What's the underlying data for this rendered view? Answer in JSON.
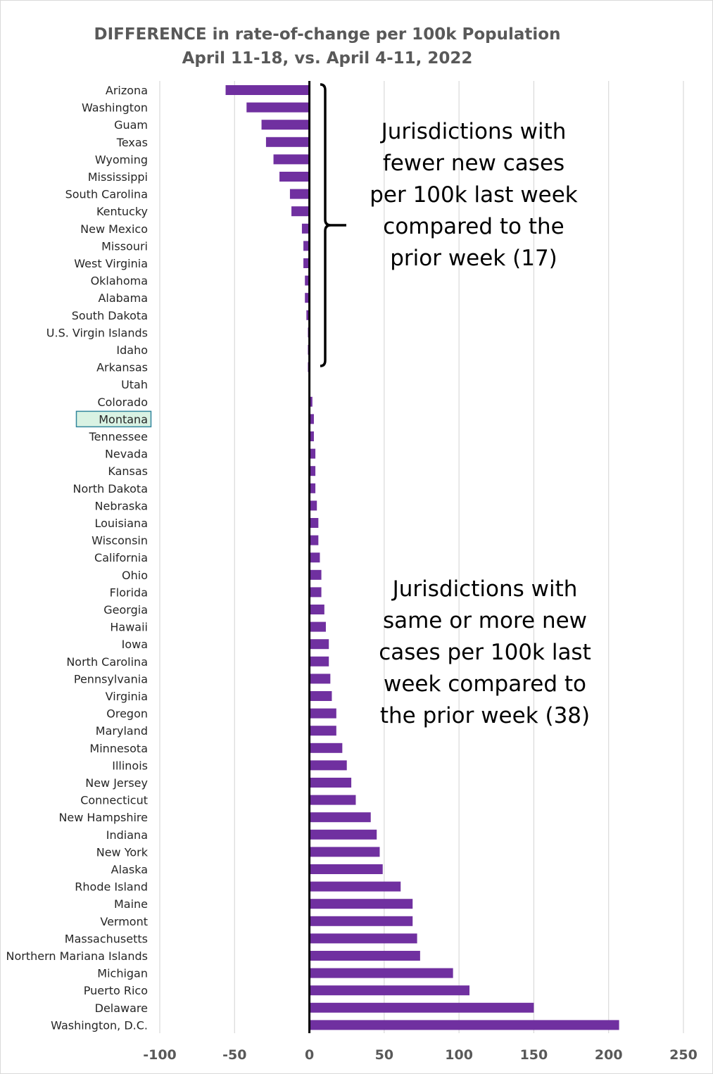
{
  "chart_data": {
    "type": "bar",
    "orientation": "horizontal",
    "title": [
      "DIFFERENCE in rate-of-change per 100k Population",
      "April 11-18, vs. April 4-11, 2022"
    ],
    "categories": [
      "Arizona",
      "Washington",
      "Guam",
      "Texas",
      "Wyoming",
      "Mississippi",
      "South Carolina",
      "Kentucky",
      "New Mexico",
      "Missouri",
      "West Virginia",
      "Oklahoma",
      "Alabama",
      "South Dakota",
      "U.S. Virgin Islands",
      "Idaho",
      "Arkansas",
      "Utah",
      "Colorado",
      "Montana",
      "Tennessee",
      "Nevada",
      "Kansas",
      "North Dakota",
      "Nebraska",
      "Louisiana",
      "Wisconsin",
      "California",
      "Ohio",
      "Florida",
      "Georgia",
      "Hawaii",
      "Iowa",
      "North Carolina",
      "Pennsylvania",
      "Virginia",
      "Oregon",
      "Maryland",
      "Minnesota",
      "Illinois",
      "New Jersey",
      "Connecticut",
      "New Hampshire",
      "Indiana",
      "New York",
      "Alaska",
      "Rhode Island",
      "Maine",
      "Vermont",
      "Massachusetts",
      "Northern Mariana Islands",
      "Michigan",
      "Puerto Rico",
      "Delaware",
      "Washington, D.C."
    ],
    "values": [
      -56,
      -42,
      -32,
      -29,
      -24,
      -20,
      -13,
      -12,
      -5,
      -4,
      -4,
      -3,
      -3,
      -2,
      -1,
      -1,
      -1,
      0,
      2,
      3,
      3,
      4,
      4,
      4,
      5,
      6,
      6,
      7,
      8,
      8,
      10,
      11,
      13,
      13,
      14,
      15,
      18,
      18,
      22,
      25,
      28,
      31,
      41,
      45,
      47,
      49,
      61,
      69,
      69,
      72,
      74,
      96,
      107,
      150,
      207
    ],
    "highlighted_category": "Montana",
    "xlim": [
      -100,
      250
    ],
    "xticks": [
      -100,
      -50,
      0,
      50,
      100,
      150,
      200,
      250
    ],
    "xlabel": "",
    "ylabel": "",
    "grid": true,
    "bar_color": "#7030a0",
    "highlight_fill": "#d9f2e3",
    "highlight_border": "#31859c",
    "annotations": [
      {
        "lines": [
          "Jurisdictions with",
          "fewer new cases",
          "per 100k last week",
          "compared to the",
          "prior week (17)"
        ]
      },
      {
        "lines": [
          "Jurisdictions with",
          "same or more new",
          "cases per 100k last",
          "week compared to",
          "the prior week (38)"
        ]
      }
    ]
  }
}
